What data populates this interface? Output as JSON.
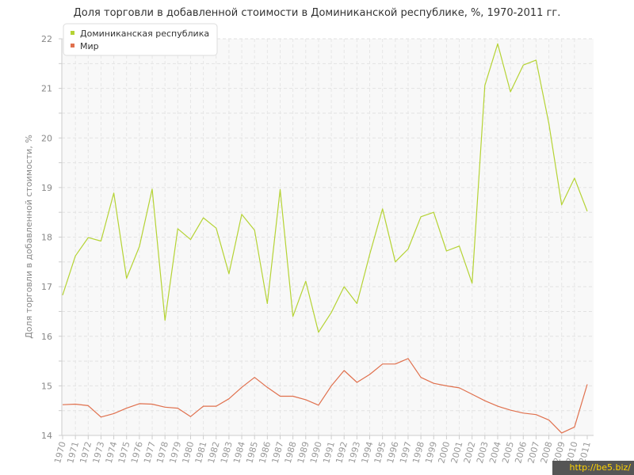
{
  "chart_data": {
    "type": "line",
    "title": "Доля торговли в добавленной стоимости в Доминиканской республике, %, 1970-2011 гг.",
    "xlabel": "",
    "ylabel": "Доля торговли в добавленной стоимости, %",
    "ylim": [
      14,
      22
    ],
    "yticks": [
      "14",
      "15",
      "16",
      "17",
      "18",
      "19",
      "20",
      "21",
      "22"
    ],
    "grid": true,
    "legend_position": "top-left",
    "x": [
      "1970",
      "1971",
      "1972",
      "1973",
      "1974",
      "1975",
      "1976",
      "1977",
      "1978",
      "1979",
      "1980",
      "1981",
      "1982",
      "1983",
      "1984",
      "1985",
      "1986",
      "1987",
      "1988",
      "1989",
      "1990",
      "1991",
      "1992",
      "1993",
      "1994",
      "1995",
      "1996",
      "1997",
      "1998",
      "1999",
      "2000",
      "2001",
      "2002",
      "2003",
      "2004",
      "2005",
      "2006",
      "2007",
      "2008",
      "2009",
      "2010",
      "2011"
    ],
    "series": [
      {
        "name": "Доминиканская республика",
        "color": "#b5d334",
        "values": [
          16.83,
          17.62,
          17.99,
          17.92,
          18.89,
          17.17,
          17.81,
          18.97,
          16.32,
          18.17,
          17.95,
          18.39,
          18.18,
          17.26,
          18.46,
          18.14,
          16.66,
          18.96,
          16.4,
          17.11,
          16.08,
          16.48,
          17.0,
          16.66,
          17.65,
          18.57,
          17.5,
          17.76,
          18.41,
          18.5,
          17.72,
          17.82,
          17.07,
          21.06,
          21.9,
          20.93,
          21.47,
          21.57,
          20.29,
          18.65,
          19.19,
          18.52
        ]
      },
      {
        "name": "Мир",
        "color": "#e0704d",
        "values": [
          14.62,
          14.63,
          14.6,
          14.37,
          14.44,
          14.55,
          14.64,
          14.63,
          14.57,
          14.55,
          14.38,
          14.59,
          14.59,
          14.74,
          14.97,
          15.17,
          14.97,
          14.79,
          14.79,
          14.72,
          14.61,
          15.0,
          15.31,
          15.07,
          15.23,
          15.44,
          15.44,
          15.55,
          15.17,
          15.05,
          15.0,
          14.96,
          14.83,
          14.7,
          14.59,
          14.51,
          14.45,
          14.42,
          14.31,
          14.05,
          14.17,
          15.03
        ]
      }
    ]
  },
  "watermark": "http://be5.biz/"
}
